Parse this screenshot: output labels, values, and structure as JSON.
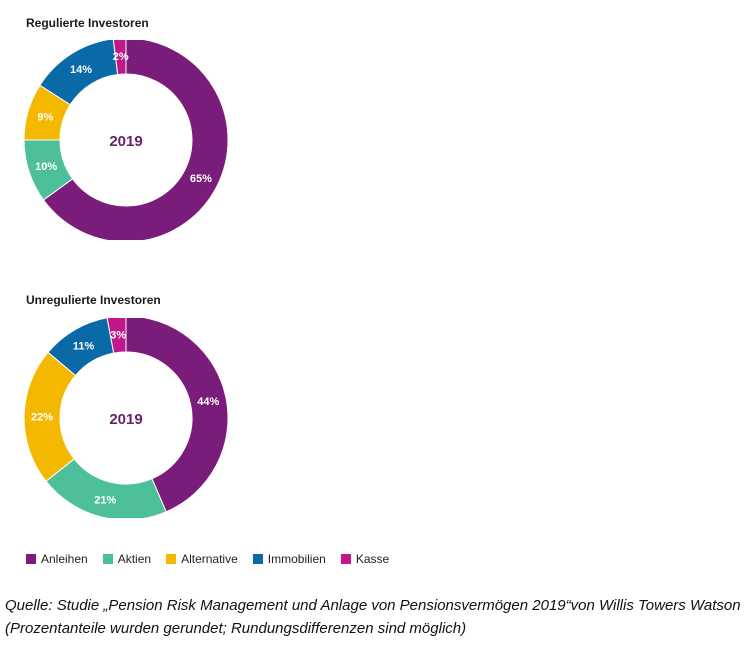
{
  "chart_data": [
    {
      "type": "pie",
      "title": "Regulierte Investoren",
      "center_label": "2019",
      "categories": [
        "Anleihen",
        "Aktien",
        "Alternative",
        "Immobilien",
        "Kasse"
      ],
      "values": [
        65,
        10,
        9,
        14,
        2
      ],
      "value_labels": [
        "65%",
        "10%",
        "9%",
        "14%",
        "2%"
      ]
    },
    {
      "type": "pie",
      "title": "Unregulierte Investoren",
      "center_label": "2019",
      "categories": [
        "Anleihen",
        "Aktien",
        "Alternative",
        "Immobilien",
        "Kasse"
      ],
      "values": [
        44,
        21,
        22,
        11,
        3
      ],
      "value_labels": [
        "44%",
        "21%",
        "22%",
        "11%",
        "3%"
      ]
    }
  ],
  "legend": {
    "position": "bottom-left",
    "items": [
      {
        "label": "Anleihen",
        "color": "#7a1c7a"
      },
      {
        "label": "Aktien",
        "color": "#4dbf9a"
      },
      {
        "label": "Alternative",
        "color": "#f5b800"
      },
      {
        "label": "Immobilien",
        "color": "#0a6aa8"
      },
      {
        "label": "Kasse",
        "color": "#c0178a"
      }
    ]
  },
  "source": "Quelle: Studie „Pension Risk Management und Anlage von Pensionsvermögen 2019“von Willis Towers Watson (Prozentanteile wurden gerundet; Rundungsdifferenzen sind möglich)"
}
